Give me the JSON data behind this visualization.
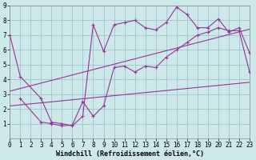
{
  "xlabel": "Windchill (Refroidissement éolien,°C)",
  "bg_color": "#cce8e8",
  "line_color": "#993399",
  "grid_color": "#99bbcc",
  "xlim": [
    0,
    23
  ],
  "ylim": [
    0,
    9
  ],
  "xticks": [
    0,
    1,
    2,
    3,
    4,
    5,
    6,
    7,
    8,
    9,
    10,
    11,
    12,
    13,
    14,
    15,
    16,
    17,
    18,
    19,
    20,
    21,
    22,
    23
  ],
  "yticks": [
    1,
    2,
    3,
    4,
    5,
    6,
    7,
    8,
    9
  ],
  "series1_x": [
    0,
    1,
    3,
    4,
    5,
    6,
    7,
    8,
    9,
    10,
    11,
    12,
    13,
    14,
    15,
    16,
    17,
    18,
    19,
    20,
    21,
    22,
    23
  ],
  "series1_y": [
    7.0,
    4.2,
    2.7,
    1.1,
    1.0,
    0.85,
    1.5,
    7.7,
    5.9,
    7.7,
    7.85,
    8.0,
    7.5,
    7.35,
    7.85,
    8.9,
    8.4,
    7.5,
    7.5,
    8.1,
    7.2,
    7.5,
    5.8
  ],
  "series2_x": [
    1,
    3,
    4,
    5,
    6,
    7,
    8,
    9,
    10,
    11,
    12,
    13,
    14,
    15,
    16,
    17,
    18,
    19,
    20,
    21,
    22,
    23
  ],
  "series2_y": [
    2.7,
    1.1,
    1.0,
    0.85,
    0.9,
    2.5,
    1.5,
    2.2,
    4.8,
    4.9,
    4.5,
    4.9,
    4.8,
    5.5,
    6.0,
    6.5,
    7.0,
    7.2,
    7.5,
    7.3,
    7.3,
    4.5
  ],
  "series3_x": [
    0,
    23
  ],
  "series3_y": [
    3.2,
    7.4
  ],
  "series4_x": [
    0,
    23
  ],
  "series4_y": [
    2.2,
    3.8
  ],
  "linewidth": 0.8,
  "markersize": 3,
  "xlabel_fontsize": 6,
  "tick_fontsize": 5.5
}
